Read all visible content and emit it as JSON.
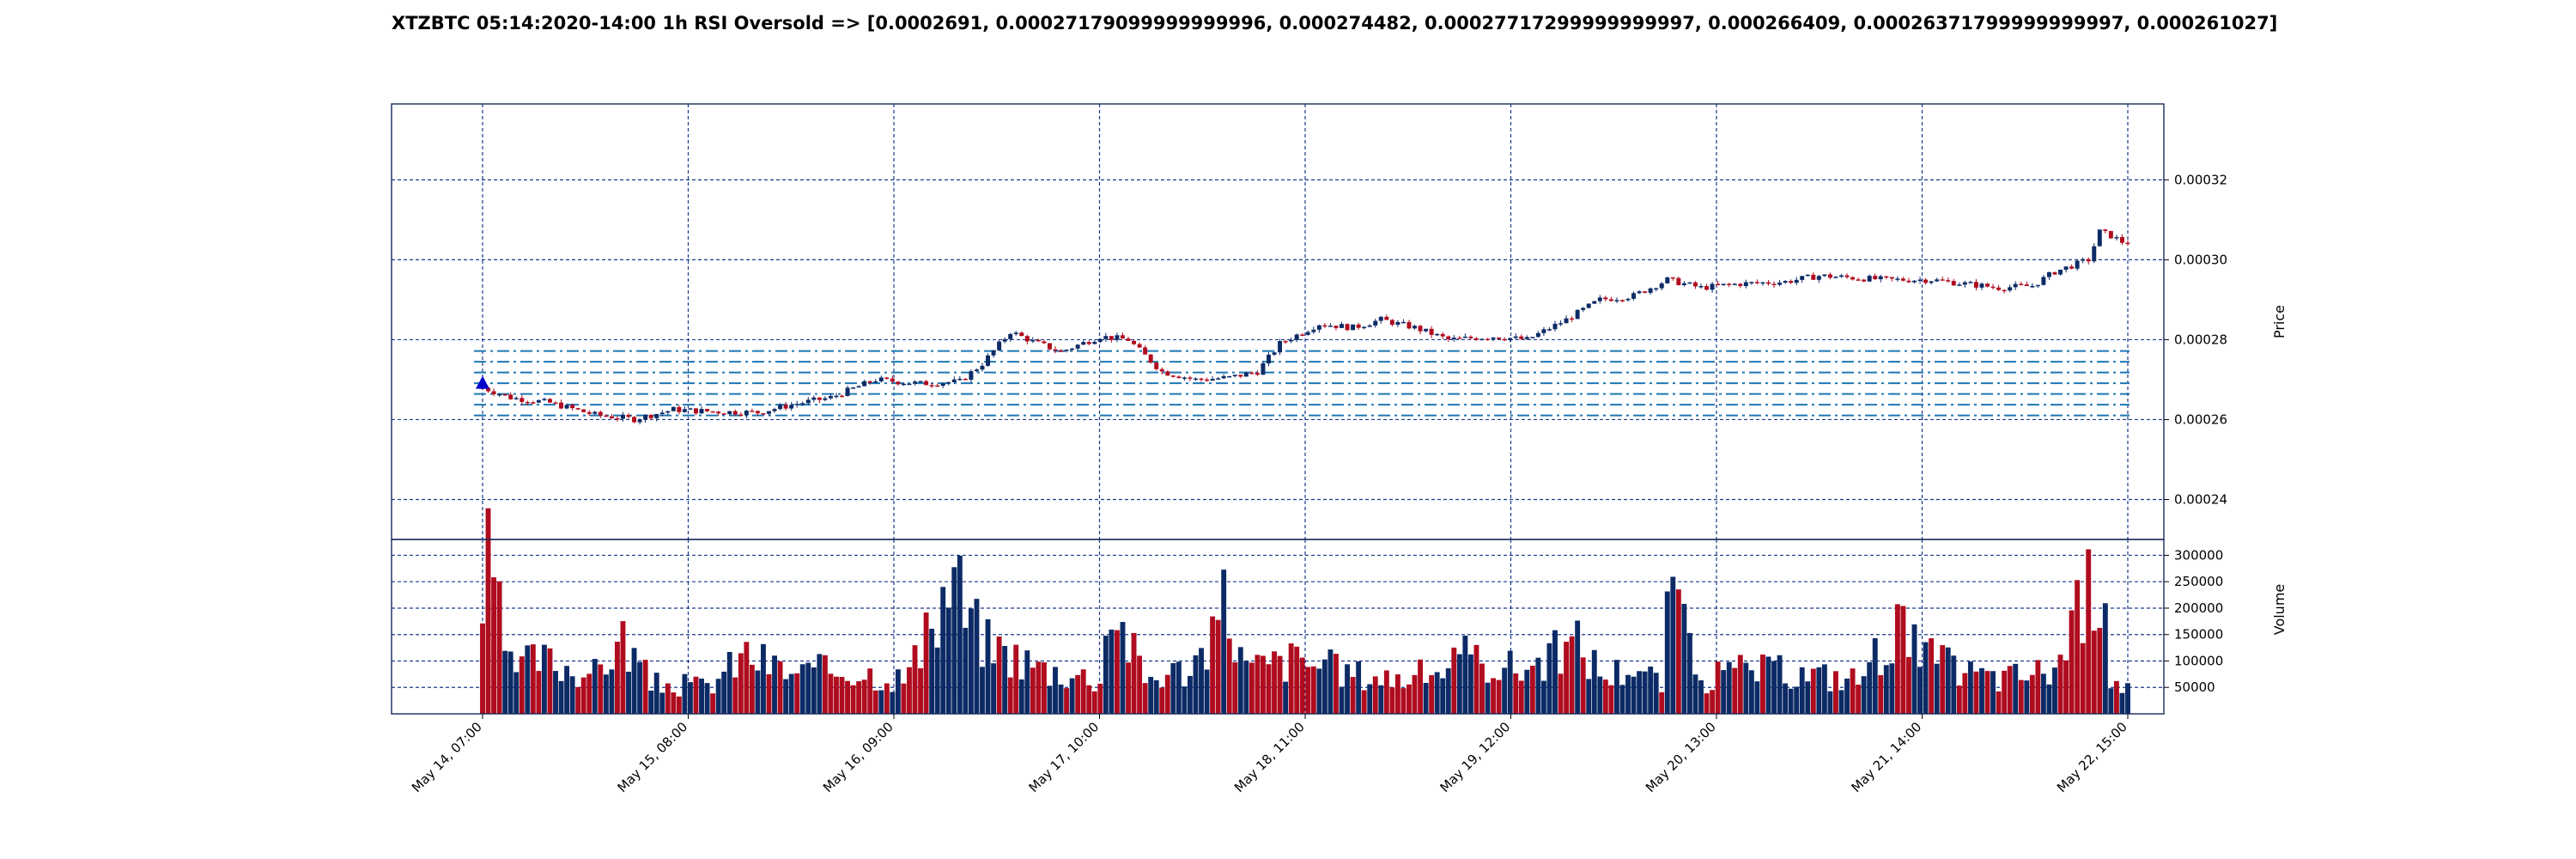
{
  "chart_data": {
    "type": "candlestick",
    "title": "XTZBTC 05:14:2020-14:00 1h RSI Oversold => [0.0002691, 0.00027179099999999996, 0.000274482, 0.00027717299999999997, 0.000266409, 0.00026371799999999997, 0.000261027]",
    "price_axis": {
      "label": "Price",
      "ylim": [
        0.00023,
        0.000339
      ],
      "ticks": [
        0.00024,
        0.00026,
        0.00028,
        0.0003,
        0.00032
      ],
      "tick_labels": [
        "0.00024",
        "0.00026",
        "0.00028",
        "0.00030",
        "0.00032"
      ]
    },
    "volume_axis": {
      "label": "Volume",
      "ylim": [
        0,
        330000
      ],
      "ticks": [
        50000,
        100000,
        150000,
        200000,
        250000,
        300000
      ],
      "tick_labels": [
        "50000",
        "100000",
        "150000",
        "200000",
        "250000",
        "300000"
      ]
    },
    "x_ticks": [
      "May 14, 07:00",
      "May 15, 08:00",
      "May 16, 09:00",
      "May 17, 10:00",
      "May 18, 11:00",
      "May 19, 12:00",
      "May 20, 13:00",
      "May 21, 14:00",
      "May 22, 15:00"
    ],
    "rsi_oversold_levels": [
      0.0002691,
      0.00027179099999999996,
      0.000274482,
      0.00027717299999999997,
      0.000266409,
      0.00026371799999999997,
      0.000261027
    ],
    "signal": {
      "type": "buy",
      "at": "May 14, 07:00",
      "price": 0.000269
    },
    "grid": true,
    "colors": {
      "up": "#0c2b66",
      "down": "#b00c1f",
      "grid": "#1a3a8a",
      "levels": "#1f77b4",
      "signal": "#0000cc"
    },
    "price_path": [
      [
        0,
        0.000268
      ],
      [
        5,
        0.0002655
      ],
      [
        12,
        0.0002642
      ],
      [
        20,
        0.0002612
      ],
      [
        27,
        0.0002601
      ],
      [
        34,
        0.0002625
      ],
      [
        41,
        0.000262
      ],
      [
        49,
        0.0002618
      ],
      [
        56,
        0.000264
      ],
      [
        62,
        0.0002655
      ],
      [
        70,
        0.00027
      ],
      [
        78,
        0.000269
      ],
      [
        85,
        0.0002695
      ],
      [
        89,
        0.000274
      ],
      [
        94,
        0.000282
      ],
      [
        98,
        0.0002795
      ],
      [
        103,
        0.000277
      ],
      [
        110,
        0.0002808
      ],
      [
        115,
        0.00028
      ],
      [
        121,
        0.000272
      ],
      [
        127,
        0.00027
      ],
      [
        133,
        0.0002705
      ],
      [
        138,
        0.000272
      ],
      [
        142,
        0.000279
      ],
      [
        149,
        0.000284
      ],
      [
        155,
        0.000283
      ],
      [
        160,
        0.000285
      ],
      [
        166,
        0.000283
      ],
      [
        172,
        0.00028
      ],
      [
        180,
        0.0002808
      ],
      [
        186,
        0.00028
      ],
      [
        193,
        0.000285
      ],
      [
        199,
        0.00029
      ],
      [
        205,
        0.000291
      ],
      [
        211,
        0.000295
      ],
      [
        217,
        0.000293
      ],
      [
        224,
        0.000294
      ],
      [
        232,
        0.0002945
      ],
      [
        238,
        0.000296
      ],
      [
        244,
        0.0002955
      ],
      [
        250,
        0.000295
      ],
      [
        258,
        0.000295
      ],
      [
        264,
        0.000294
      ],
      [
        270,
        0.000293
      ],
      [
        276,
        0.0002935
      ],
      [
        280,
        0.000297
      ],
      [
        286,
        0.0003
      ],
      [
        288,
        0.000307
      ],
      [
        290,
        0.000306
      ],
      [
        292,
        0.0003045
      ]
    ],
    "volume_path": [
      [
        0,
        210000
      ],
      [
        1,
        300000
      ],
      [
        2,
        240000
      ],
      [
        3,
        190000
      ],
      [
        5,
        90000
      ],
      [
        10,
        110000
      ],
      [
        20,
        80000
      ],
      [
        25,
        150000
      ],
      [
        30,
        60000
      ],
      [
        40,
        55000
      ],
      [
        47,
        120000
      ],
      [
        55,
        80000
      ],
      [
        65,
        90000
      ],
      [
        75,
        70000
      ],
      [
        80,
        160000
      ],
      [
        84,
        290000
      ],
      [
        86,
        200000
      ],
      [
        90,
        140000
      ],
      [
        100,
        90000
      ],
      [
        110,
        70000
      ],
      [
        112,
        235000
      ],
      [
        114,
        170000
      ],
      [
        118,
        70000
      ],
      [
        125,
        90000
      ],
      [
        130,
        140000
      ],
      [
        132,
        230000
      ],
      [
        136,
        90000
      ],
      [
        145,
        110000
      ],
      [
        155,
        80000
      ],
      [
        165,
        70000
      ],
      [
        175,
        110000
      ],
      [
        185,
        90000
      ],
      [
        195,
        140000
      ],
      [
        200,
        75000
      ],
      [
        205,
        100000
      ],
      [
        210,
        60000
      ],
      [
        212,
        300000
      ],
      [
        214,
        160000
      ],
      [
        218,
        70000
      ],
      [
        225,
        90000
      ],
      [
        235,
        80000
      ],
      [
        245,
        70000
      ],
      [
        252,
        180000
      ],
      [
        255,
        130000
      ],
      [
        262,
        90000
      ],
      [
        270,
        70000
      ],
      [
        280,
        90000
      ],
      [
        287,
        270000
      ],
      [
        289,
        280000
      ],
      [
        290,
        75000
      ],
      [
        292,
        60000
      ]
    ]
  }
}
